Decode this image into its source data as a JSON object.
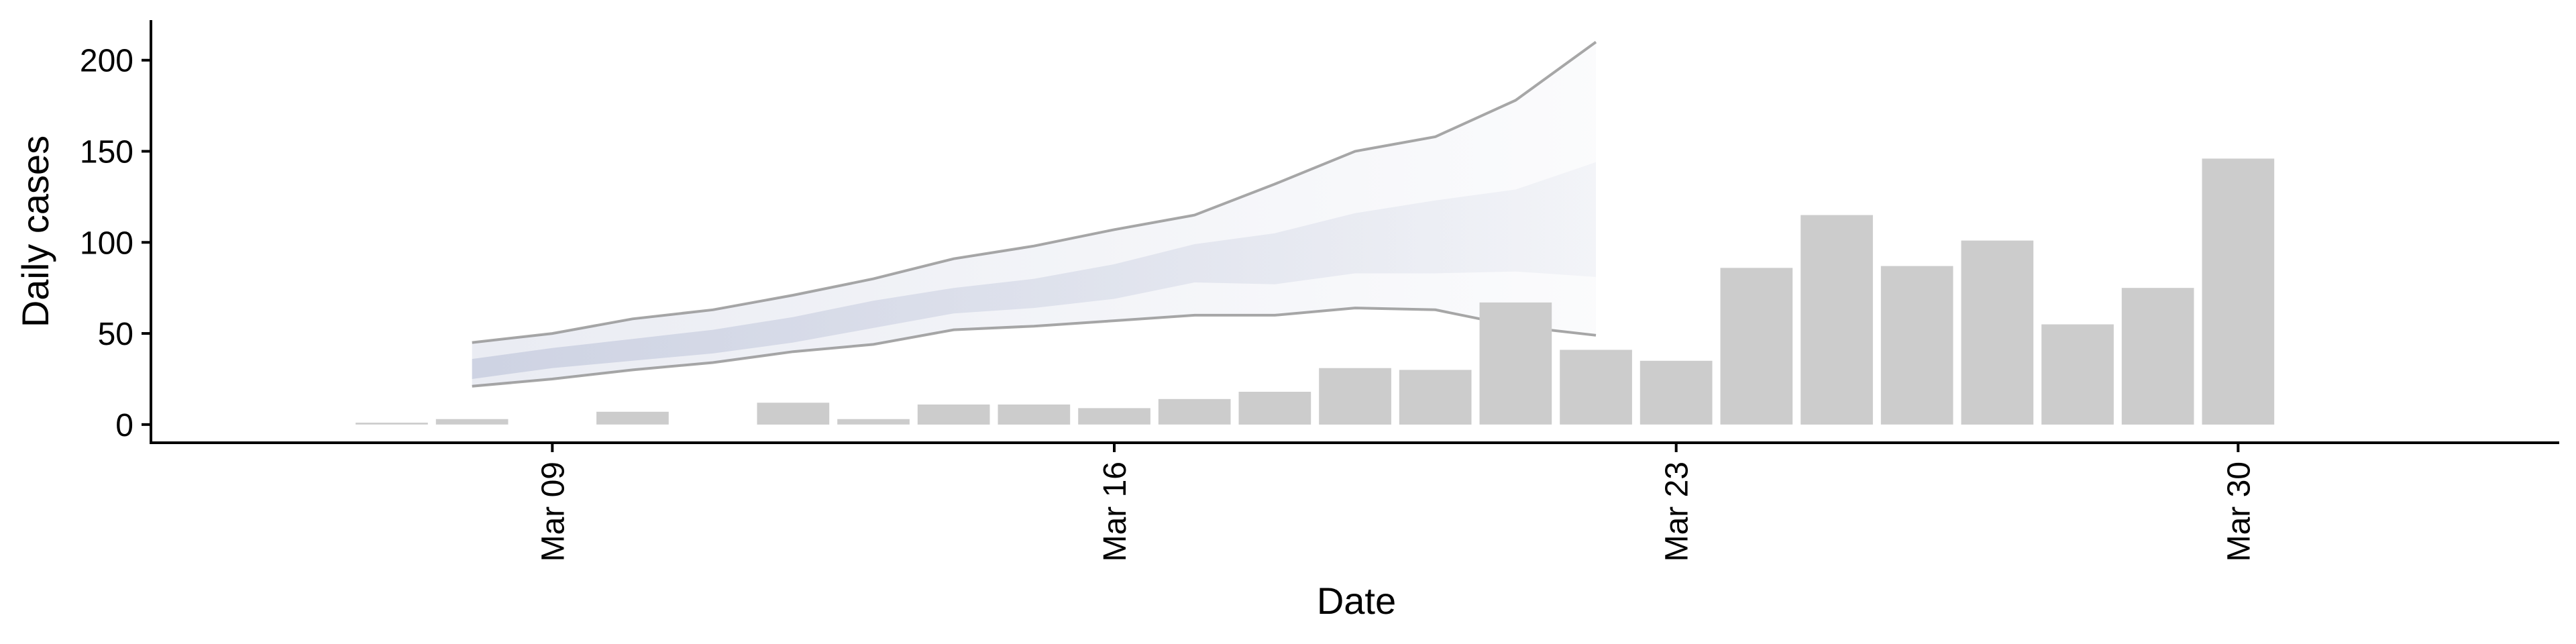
{
  "chart_data": {
    "type": "bar",
    "xlabel": "Date",
    "ylabel": "Daily cases",
    "xlim": [
      "2020-03-04",
      "2020-04-03"
    ],
    "ylim": [
      -10,
      222
    ],
    "x_ticks": [
      {
        "date": "2020-03-09",
        "label": "Mar 09"
      },
      {
        "date": "2020-03-16",
        "label": "Mar 16"
      },
      {
        "date": "2020-03-23",
        "label": "Mar 23"
      },
      {
        "date": "2020-03-30",
        "label": "Mar 30"
      }
    ],
    "y_ticks": [
      0,
      50,
      100,
      150,
      200
    ],
    "bar_color": "#cccccc",
    "band_color": "#c2c8dc",
    "line_color": "#8a8a8a",
    "bars": [
      {
        "date": "2020-03-07",
        "value": 1
      },
      {
        "date": "2020-03-08",
        "value": 3
      },
      {
        "date": "2020-03-10",
        "value": 7
      },
      {
        "date": "2020-03-12",
        "value": 12
      },
      {
        "date": "2020-03-13",
        "value": 3
      },
      {
        "date": "2020-03-14",
        "value": 11
      },
      {
        "date": "2020-03-15",
        "value": 11
      },
      {
        "date": "2020-03-16",
        "value": 9
      },
      {
        "date": "2020-03-17",
        "value": 14
      },
      {
        "date": "2020-03-18",
        "value": 18
      },
      {
        "date": "2020-03-19",
        "value": 31
      },
      {
        "date": "2020-03-20",
        "value": 30
      },
      {
        "date": "2020-03-21",
        "value": 67
      },
      {
        "date": "2020-03-22",
        "value": 41
      },
      {
        "date": "2020-03-23",
        "value": 35
      },
      {
        "date": "2020-03-24",
        "value": 86
      },
      {
        "date": "2020-03-25",
        "value": 115
      },
      {
        "date": "2020-03-26",
        "value": 87
      },
      {
        "date": "2020-03-27",
        "value": 101
      },
      {
        "date": "2020-03-28",
        "value": 55
      },
      {
        "date": "2020-03-29",
        "value": 75
      },
      {
        "date": "2020-03-30",
        "value": 146
      }
    ],
    "projection": {
      "dates": [
        "2020-03-08",
        "2020-03-09",
        "2020-03-10",
        "2020-03-11",
        "2020-03-12",
        "2020-03-13",
        "2020-03-14",
        "2020-03-15",
        "2020-03-16",
        "2020-03-17",
        "2020-03-18",
        "2020-03-19",
        "2020-03-20",
        "2020-03-21",
        "2020-03-22"
      ],
      "outer_upper": [
        45,
        50,
        58,
        63,
        71,
        80,
        91,
        98,
        107,
        115,
        132,
        150,
        158,
        178,
        210
      ],
      "outer_lower": [
        21,
        25,
        30,
        34,
        40,
        44,
        52,
        54,
        57,
        60,
        60,
        64,
        63,
        54,
        49
      ],
      "inner_upper": [
        36,
        42,
        47,
        52,
        59,
        68,
        75,
        80,
        88,
        99,
        105,
        116,
        123,
        129,
        144
      ],
      "inner_lower": [
        25,
        31,
        35,
        39,
        45,
        53,
        61,
        64,
        69,
        78,
        77,
        83,
        83,
        84,
        81
      ]
    }
  }
}
